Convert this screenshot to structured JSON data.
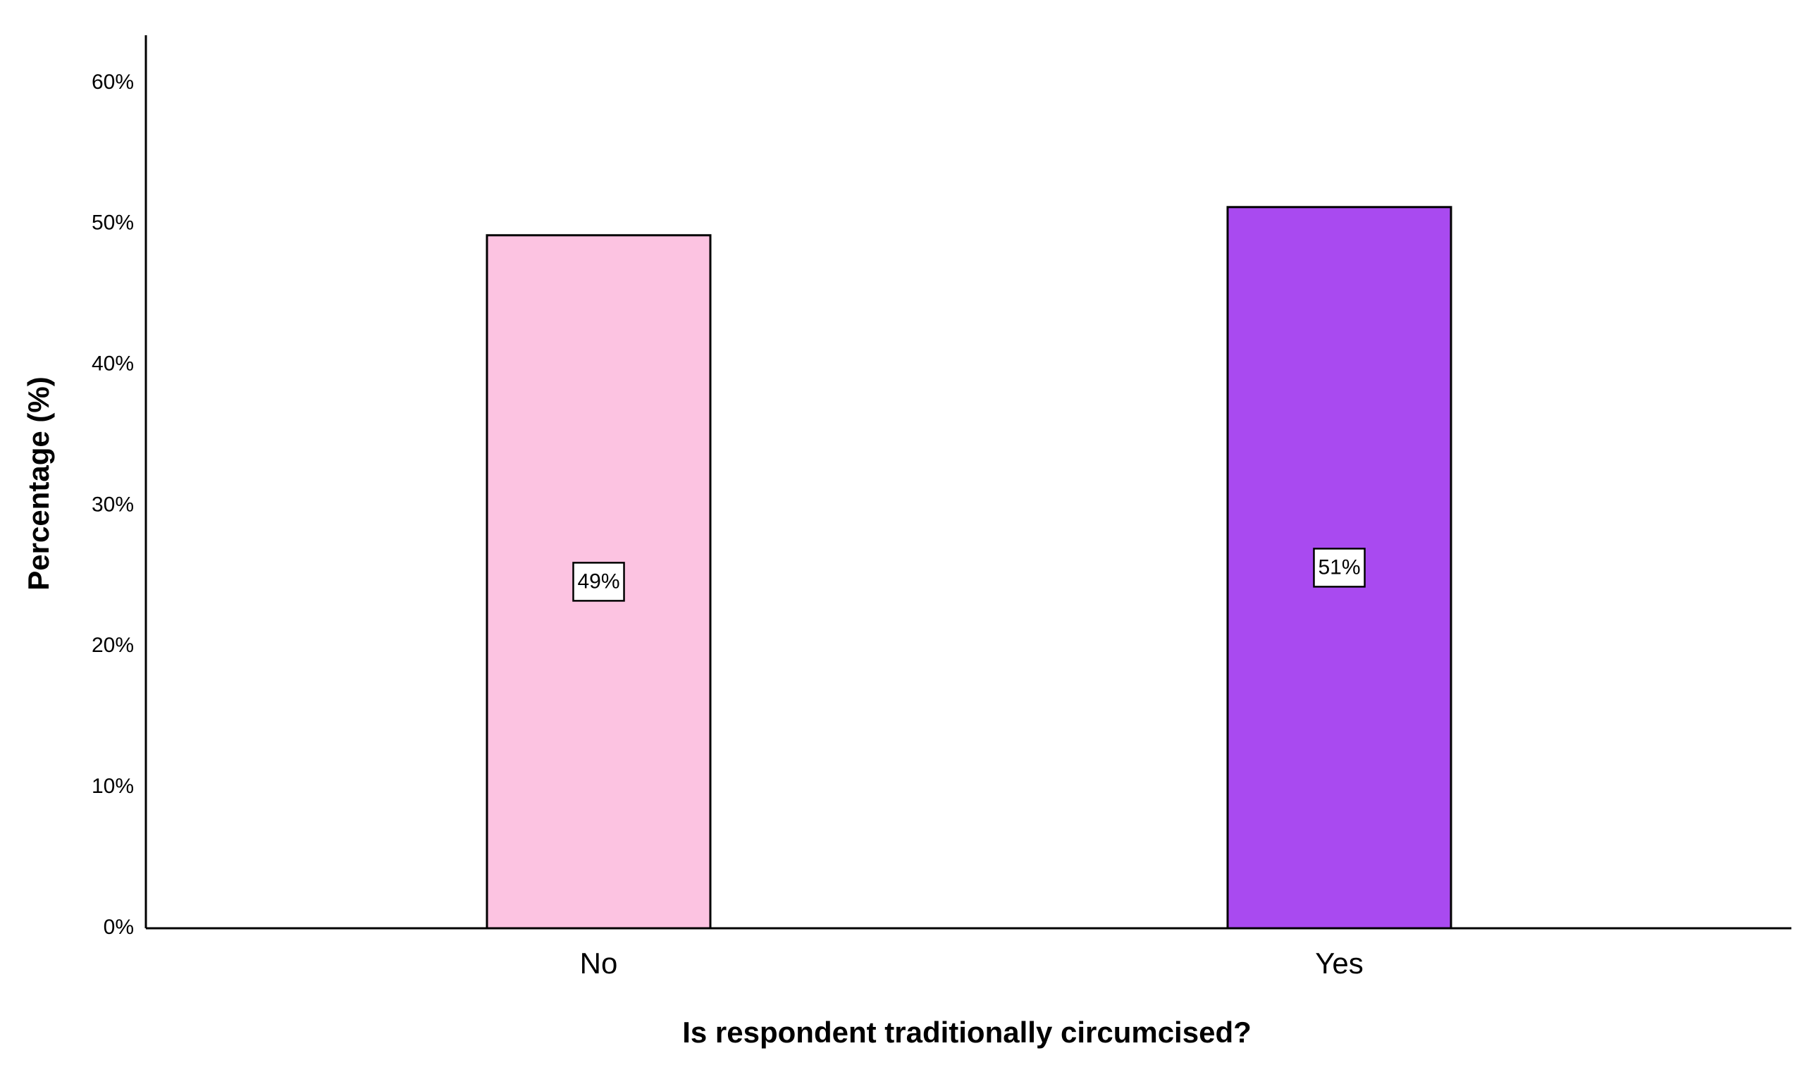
{
  "chart_data": {
    "type": "bar",
    "x_label": "Is respondent traditionally circumcised?",
    "y_label": "Percentage (%)",
    "categories": [
      "No",
      "Yes"
    ],
    "values": [
      49.2,
      51.2
    ],
    "value_labels": [
      "49%",
      "51%"
    ],
    "colors": [
      "#fcc3e1",
      "#a94af0"
    ],
    "ylim": [
      0,
      63.4
    ],
    "yticks": [
      {
        "value": 0,
        "label": "0%"
      },
      {
        "value": 10,
        "label": "10%"
      },
      {
        "value": 20,
        "label": "20%"
      },
      {
        "value": 30,
        "label": "30%"
      },
      {
        "value": 40,
        "label": "40%"
      },
      {
        "value": 50,
        "label": "50%"
      },
      {
        "value": 60,
        "label": "60%"
      }
    ],
    "grid": false
  }
}
